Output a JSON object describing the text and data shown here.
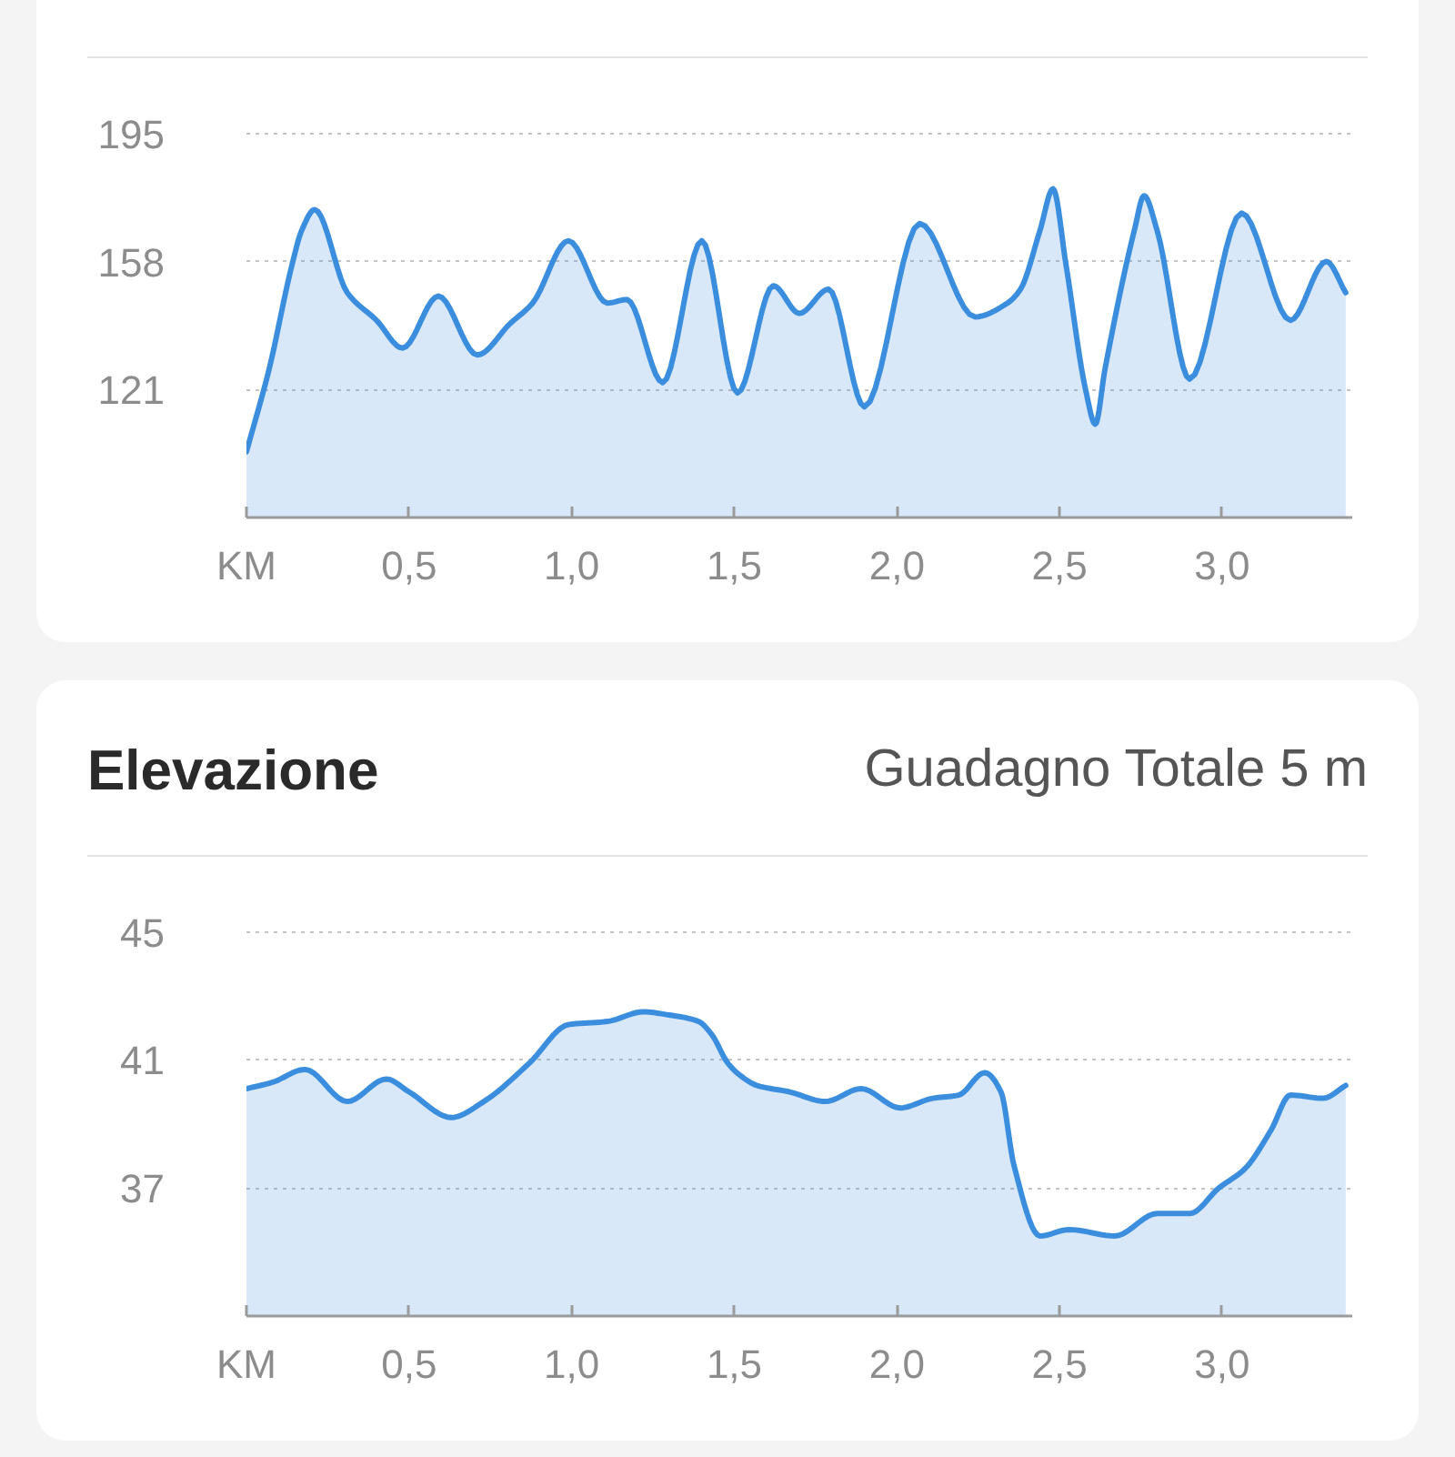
{
  "chart_data": [
    {
      "type": "area",
      "grid": "y",
      "xlim": [
        0,
        3.4
      ],
      "ylim": [
        84,
        196
      ],
      "xticks": [
        {
          "value": 0,
          "label": "KM"
        },
        {
          "value": 0.5,
          "label": "0,5"
        },
        {
          "value": 1.0,
          "label": "1,0"
        },
        {
          "value": 1.5,
          "label": "1,5"
        },
        {
          "value": 2.0,
          "label": "2,0"
        },
        {
          "value": 2.5,
          "label": "2,5"
        },
        {
          "value": 3.0,
          "label": "3,0"
        }
      ],
      "yticks": [
        121,
        158,
        195
      ],
      "x": [
        0,
        0.07,
        0.14,
        0.17,
        0.21,
        0.31,
        0.4,
        0.48,
        0.59,
        0.71,
        0.81,
        0.88,
        0.99,
        1.11,
        1.17,
        1.28,
        1.4,
        1.51,
        1.62,
        1.7,
        1.79,
        1.9,
        2.07,
        2.24,
        2.34,
        2.38,
        2.44,
        2.48,
        2.52,
        2.58,
        2.61,
        2.64,
        2.73,
        2.76,
        2.8,
        2.9,
        3.06,
        3.21,
        3.32,
        3.38
      ],
      "series": [
        {
          "color": "#3b8ede",
          "values": [
            103,
            127,
            157,
            167,
            173,
            149,
            141,
            133,
            148,
            131,
            140,
            146,
            164,
            146,
            147,
            123,
            164,
            120,
            151,
            143,
            150,
            116,
            169,
            142,
            146,
            150,
            167,
            179,
            157,
            121,
            111,
            127,
            167,
            177,
            167,
            124,
            172,
            141,
            158,
            149
          ]
        }
      ]
    },
    {
      "type": "area",
      "title": "Elevazione",
      "subtitle": "Guadagno Totale 5 m",
      "grid": "y",
      "xlim": [
        0,
        3.4
      ],
      "ylim": [
        33,
        45.1
      ],
      "xticks": [
        {
          "value": 0,
          "label": "KM"
        },
        {
          "value": 0.5,
          "label": "0,5"
        },
        {
          "value": 1.0,
          "label": "1,0"
        },
        {
          "value": 1.5,
          "label": "1,5"
        },
        {
          "value": 2.0,
          "label": "2,0"
        },
        {
          "value": 2.5,
          "label": "2,5"
        },
        {
          "value": 3.0,
          "label": "3,0"
        }
      ],
      "yticks": [
        37,
        41,
        45
      ],
      "x": [
        0,
        0.08,
        0.18,
        0.31,
        0.43,
        0.5,
        0.63,
        0.73,
        0.87,
        0.99,
        1.11,
        1.22,
        1.3,
        1.39,
        1.43,
        1.48,
        1.52,
        1.57,
        1.67,
        1.78,
        1.89,
        2.01,
        2.11,
        2.19,
        2.27,
        2.32,
        2.36,
        2.44,
        2.53,
        2.67,
        2.8,
        2.9,
        2.99,
        3.07,
        3.15,
        3.21,
        3.31,
        3.38
      ],
      "series": [
        {
          "color": "#3b8ede",
          "values": [
            40.1,
            40.3,
            40.7,
            39.7,
            40.4,
            40.0,
            39.2,
            39.7,
            40.9,
            42.1,
            42.2,
            42.5,
            42.4,
            42.2,
            41.8,
            40.9,
            40.5,
            40.2,
            40.0,
            39.7,
            40.1,
            39.5,
            39.8,
            39.9,
            40.6,
            40.0,
            37.7,
            35.5,
            35.7,
            35.5,
            36.2,
            36.2,
            37.0,
            37.6,
            38.8,
            39.9,
            39.8,
            40.2
          ]
        }
      ]
    }
  ]
}
